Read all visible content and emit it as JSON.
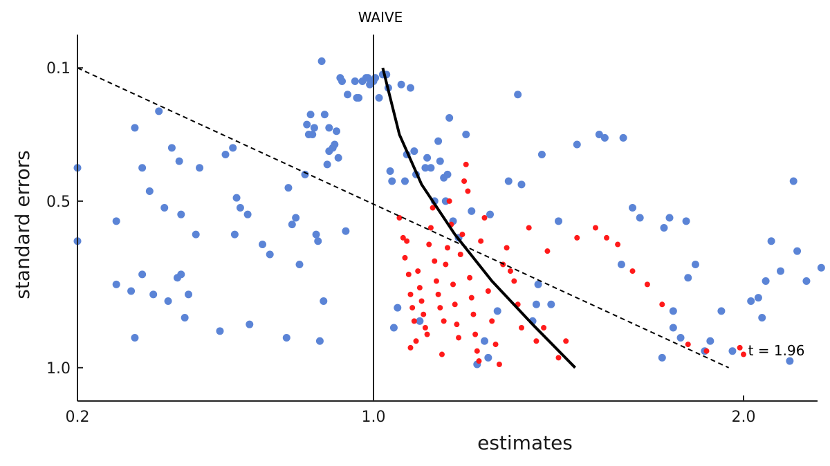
{
  "colors": {
    "blue": "#5b84d6",
    "red": "#ff1a1a",
    "curve": "#000000",
    "dashed": "#000000",
    "axis": "#222222"
  },
  "chart_data": {
    "type": "scatter",
    "title": "",
    "xlabel": "estimates",
    "ylabel": "standard errors",
    "xlim": [
      0.2,
      2.2
    ],
    "ylim": [
      1.1,
      0.0
    ],
    "y_inverted": true,
    "x_ticks": [
      {
        "value": 0.2,
        "label": "0.2"
      },
      {
        "value": 1.0,
        "label": "1.0"
      },
      {
        "value": 2.0,
        "label": "2.0"
      }
    ],
    "y_ticks": [
      {
        "value": 0.1,
        "label": "0.1"
      },
      {
        "value": 0.5,
        "label": "0.5"
      },
      {
        "value": 1.0,
        "label": "1.0"
      }
    ],
    "grid": false,
    "reference_line": {
      "x": 1.0,
      "label": "WAIVE"
    },
    "dashed_line": {
      "points": [
        [
          0.2,
          0.1
        ],
        [
          1.96,
          1.0
        ]
      ],
      "label": "t = 1.96"
    },
    "curve": {
      "points": [
        [
          1.025,
          0.1
        ],
        [
          1.07,
          0.3
        ],
        [
          1.13,
          0.45
        ],
        [
          1.22,
          0.6
        ],
        [
          1.32,
          0.74
        ],
        [
          1.43,
          0.87
        ],
        [
          1.545,
          1.0
        ]
      ]
    },
    "series": [
      {
        "color_key": "blue",
        "points": [
          [
            0.2,
            0.4
          ],
          [
            0.2,
            0.62
          ],
          [
            0.305,
            0.75
          ],
          [
            0.305,
            0.56
          ],
          [
            0.345,
            0.77
          ],
          [
            0.355,
            0.91
          ],
          [
            0.355,
            0.28
          ],
          [
            0.375,
            0.72
          ],
          [
            0.375,
            0.4
          ],
          [
            0.395,
            0.47
          ],
          [
            0.405,
            0.78
          ],
          [
            0.42,
            0.23
          ],
          [
            0.435,
            0.52
          ],
          [
            0.445,
            0.8
          ],
          [
            0.455,
            0.34
          ],
          [
            0.47,
            0.73
          ],
          [
            0.475,
            0.38
          ],
          [
            0.48,
            0.72
          ],
          [
            0.48,
            0.54
          ],
          [
            0.49,
            0.85
          ],
          [
            0.5,
            0.78
          ],
          [
            0.52,
            0.6
          ],
          [
            0.53,
            0.4
          ],
          [
            0.585,
            0.89
          ],
          [
            0.6,
            0.36
          ],
          [
            0.62,
            0.34
          ],
          [
            0.625,
            0.6
          ],
          [
            0.63,
            0.49
          ],
          [
            0.64,
            0.52
          ],
          [
            0.66,
            0.54
          ],
          [
            0.665,
            0.87
          ],
          [
            0.7,
            0.63
          ],
          [
            0.72,
            0.66
          ],
          [
            0.765,
            0.91
          ],
          [
            0.77,
            0.46
          ],
          [
            0.78,
            0.57
          ],
          [
            0.79,
            0.55
          ],
          [
            0.8,
            0.69
          ],
          [
            0.815,
            0.42
          ],
          [
            0.82,
            0.27
          ],
          [
            0.825,
            0.3
          ],
          [
            0.83,
            0.24
          ],
          [
            0.835,
            0.3
          ],
          [
            0.84,
            0.28
          ],
          [
            0.845,
            0.6
          ],
          [
            0.85,
            0.62
          ],
          [
            0.855,
            0.92
          ],
          [
            0.86,
            0.08
          ],
          [
            0.865,
            0.8
          ],
          [
            0.868,
            0.24
          ],
          [
            0.875,
            0.39
          ],
          [
            0.88,
            0.35
          ],
          [
            0.88,
            0.28
          ],
          [
            0.89,
            0.34
          ],
          [
            0.895,
            0.33
          ],
          [
            0.9,
            0.29
          ],
          [
            0.905,
            0.37
          ],
          [
            0.91,
            0.13
          ],
          [
            0.915,
            0.14
          ],
          [
            0.925,
            0.59
          ],
          [
            0.93,
            0.18
          ],
          [
            0.95,
            0.14
          ],
          [
            0.955,
            0.19
          ],
          [
            0.96,
            0.19
          ],
          [
            0.97,
            0.14
          ],
          [
            0.98,
            0.13
          ],
          [
            0.985,
            0.13
          ],
          [
            0.99,
            0.15
          ],
          [
            1.0,
            0.14
          ],
          [
            1.005,
            0.13
          ],
          [
            1.015,
            0.19
          ],
          [
            1.025,
            0.12
          ],
          [
            1.035,
            0.12
          ],
          [
            1.04,
            0.16
          ],
          [
            1.045,
            0.41
          ],
          [
            1.05,
            0.44
          ],
          [
            1.055,
            0.88
          ],
          [
            1.065,
            0.82
          ],
          [
            1.075,
            0.15
          ],
          [
            1.085,
            0.44
          ],
          [
            1.09,
            0.36
          ],
          [
            1.1,
            0.16
          ],
          [
            1.11,
            0.35
          ],
          [
            1.115,
            0.42
          ],
          [
            1.125,
            0.86
          ],
          [
            1.14,
            0.4
          ],
          [
            1.145,
            0.37
          ],
          [
            1.155,
            0.4
          ],
          [
            1.165,
            0.5
          ],
          [
            1.175,
            0.32
          ],
          [
            1.18,
            0.38
          ],
          [
            1.19,
            0.43
          ],
          [
            1.195,
            0.5
          ],
          [
            1.2,
            0.42
          ],
          [
            1.205,
            0.25
          ],
          [
            1.215,
            0.56
          ],
          [
            1.23,
            0.61
          ],
          [
            1.25,
            0.3
          ],
          [
            1.265,
            0.53
          ],
          [
            1.28,
            0.99
          ],
          [
            1.3,
            0.92
          ],
          [
            1.31,
            0.97
          ],
          [
            1.315,
            0.54
          ],
          [
            1.335,
            0.83
          ],
          [
            1.365,
            0.44
          ],
          [
            1.39,
            0.18
          ],
          [
            1.4,
            0.45
          ],
          [
            1.43,
            0.86
          ],
          [
            1.44,
            0.81
          ],
          [
            1.445,
            0.75
          ],
          [
            1.455,
            0.36
          ],
          [
            1.48,
            0.81
          ],
          [
            1.5,
            0.56
          ],
          [
            1.55,
            0.33
          ],
          [
            1.61,
            0.3
          ],
          [
            1.625,
            0.31
          ],
          [
            1.67,
            0.69
          ],
          [
            1.675,
            0.31
          ],
          [
            1.7,
            0.52
          ],
          [
            1.72,
            0.55
          ],
          [
            1.78,
            0.97
          ],
          [
            1.785,
            0.58
          ],
          [
            1.8,
            0.55
          ],
          [
            1.81,
            0.83
          ],
          [
            1.81,
            0.88
          ],
          [
            1.83,
            0.91
          ],
          [
            1.845,
            0.56
          ],
          [
            1.85,
            0.73
          ],
          [
            1.87,
            0.69
          ],
          [
            1.895,
            0.95
          ],
          [
            1.91,
            0.92
          ],
          [
            1.94,
            0.83
          ],
          [
            1.97,
            0.95
          ],
          [
            2.02,
            0.8
          ],
          [
            2.04,
            0.79
          ],
          [
            2.05,
            0.85
          ],
          [
            2.06,
            0.74
          ],
          [
            2.075,
            0.62
          ],
          [
            2.1,
            0.71
          ],
          [
            2.125,
            0.98
          ],
          [
            2.135,
            0.44
          ],
          [
            2.145,
            0.65
          ],
          [
            2.17,
            0.74
          ],
          [
            2.21,
            0.7
          ]
        ]
      },
      {
        "color_key": "red",
        "points": [
          [
            1.07,
            0.55
          ],
          [
            1.08,
            0.61
          ],
          [
            1.085,
            0.67
          ],
          [
            1.09,
            0.62
          ],
          [
            1.095,
            0.72
          ],
          [
            1.1,
            0.78
          ],
          [
            1.105,
            0.82
          ],
          [
            1.11,
            0.86
          ],
          [
            1.115,
            0.92
          ],
          [
            1.1,
            0.94
          ],
          [
            1.12,
            0.71
          ],
          [
            1.125,
            0.76
          ],
          [
            1.13,
            0.8
          ],
          [
            1.135,
            0.84
          ],
          [
            1.14,
            0.88
          ],
          [
            1.145,
            0.9
          ],
          [
            1.15,
            0.63
          ],
          [
            1.155,
            0.58
          ],
          [
            1.16,
            0.52
          ],
          [
            1.165,
            0.68
          ],
          [
            1.17,
            0.74
          ],
          [
            1.175,
            0.78
          ],
          [
            1.18,
            0.82
          ],
          [
            1.185,
            0.96
          ],
          [
            1.19,
            0.86
          ],
          [
            1.195,
            0.69
          ],
          [
            1.2,
            0.64
          ],
          [
            1.205,
            0.5
          ],
          [
            1.21,
            0.57
          ],
          [
            1.215,
            0.75
          ],
          [
            1.22,
            0.81
          ],
          [
            1.225,
            0.87
          ],
          [
            1.23,
            0.91
          ],
          [
            1.235,
            0.66
          ],
          [
            1.24,
            0.6
          ],
          [
            1.245,
            0.44
          ],
          [
            1.25,
            0.39
          ],
          [
            1.255,
            0.47
          ],
          [
            1.26,
            0.73
          ],
          [
            1.265,
            0.79
          ],
          [
            1.27,
            0.84
          ],
          [
            1.275,
            0.9
          ],
          [
            1.28,
            0.95
          ],
          [
            1.285,
            0.98
          ],
          [
            1.29,
            0.62
          ],
          [
            1.3,
            0.55
          ],
          [
            1.31,
            0.77
          ],
          [
            1.32,
            0.86
          ],
          [
            1.33,
            0.93
          ],
          [
            1.34,
            0.99
          ],
          [
            1.35,
            0.69
          ],
          [
            1.36,
            0.64
          ],
          [
            1.37,
            0.71
          ],
          [
            1.38,
            0.74
          ],
          [
            1.39,
            0.81
          ],
          [
            1.4,
            0.88
          ],
          [
            1.42,
            0.58
          ],
          [
            1.44,
            0.92
          ],
          [
            1.46,
            0.88
          ],
          [
            1.47,
            0.65
          ],
          [
            1.5,
            0.97
          ],
          [
            1.52,
            0.92
          ],
          [
            1.55,
            0.61
          ],
          [
            1.6,
            0.58
          ],
          [
            1.63,
            0.61
          ],
          [
            1.66,
            0.63
          ],
          [
            1.7,
            0.71
          ],
          [
            1.74,
            0.75
          ],
          [
            1.78,
            0.81
          ],
          [
            1.85,
            0.93
          ],
          [
            1.9,
            0.95
          ],
          [
            1.99,
            0.94
          ],
          [
            2.0,
            0.96
          ]
        ]
      }
    ]
  }
}
